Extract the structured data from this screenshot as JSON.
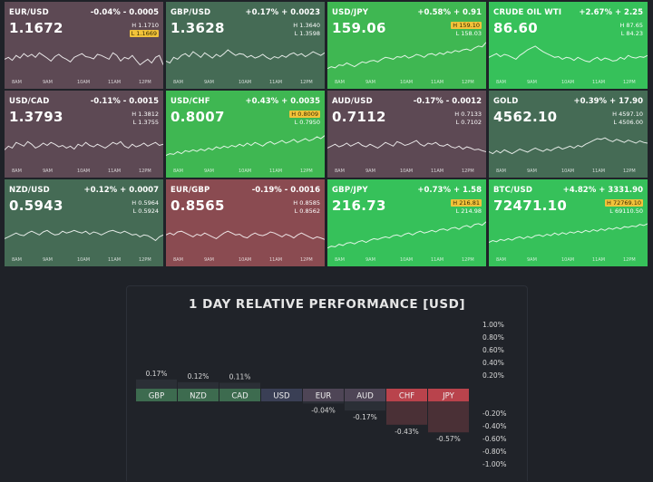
{
  "tiles": [
    {
      "symbol": "EUR/USD",
      "change": "-0.04% - 0.0005",
      "price": "1.1672",
      "high": "H 1.1710",
      "low": "L 1.1669",
      "hi_flag": "low",
      "bg": "#5d4954",
      "times": [
        "8AM",
        "9AM",
        "10AM",
        "11AM",
        "12PM"
      ],
      "spark": [
        0.45,
        0.5,
        0.42,
        0.55,
        0.48,
        0.6,
        0.52,
        0.58,
        0.5,
        0.62,
        0.55,
        0.48,
        0.4,
        0.52,
        0.58,
        0.5,
        0.45,
        0.38,
        0.5,
        0.55,
        0.6,
        0.52,
        0.5,
        0.46,
        0.58,
        0.55,
        0.5,
        0.45,
        0.62,
        0.55,
        0.4,
        0.5,
        0.46,
        0.55,
        0.42,
        0.3,
        0.38,
        0.45,
        0.35,
        0.5,
        0.55,
        0.3
      ]
    },
    {
      "symbol": "GBP/USD",
      "change": "+0.17% + 0.0023",
      "price": "1.3628",
      "high": "H 1.3640",
      "low": "L 1.3598",
      "hi_flag": "",
      "bg": "#456b55",
      "times": [
        "8AM",
        "9AM",
        "10AM",
        "11AM",
        "12PM"
      ],
      "spark": [
        0.4,
        0.35,
        0.5,
        0.45,
        0.55,
        0.6,
        0.52,
        0.65,
        0.58,
        0.5,
        0.62,
        0.55,
        0.48,
        0.58,
        0.52,
        0.6,
        0.7,
        0.62,
        0.55,
        0.6,
        0.58,
        0.5,
        0.55,
        0.48,
        0.52,
        0.58,
        0.5,
        0.45,
        0.52,
        0.48,
        0.55,
        0.5,
        0.58,
        0.62,
        0.55,
        0.6,
        0.52,
        0.58,
        0.65,
        0.6,
        0.55,
        0.62
      ]
    },
    {
      "symbol": "USD/JPY",
      "change": "+0.58% + 0.91",
      "price": "159.06",
      "high": "H 159.10",
      "low": "L 158.03",
      "hi_flag": "high",
      "bg": "#3fb752",
      "times": [
        "8AM",
        "9AM",
        "10AM",
        "11AM",
        "12PM"
      ],
      "spark": [
        0.2,
        0.25,
        0.22,
        0.3,
        0.28,
        0.35,
        0.3,
        0.25,
        0.32,
        0.38,
        0.35,
        0.4,
        0.42,
        0.38,
        0.45,
        0.5,
        0.48,
        0.45,
        0.52,
        0.5,
        0.55,
        0.48,
        0.52,
        0.58,
        0.55,
        0.5,
        0.58,
        0.6,
        0.55,
        0.62,
        0.58,
        0.65,
        0.62,
        0.68,
        0.65,
        0.7,
        0.72,
        0.68,
        0.75,
        0.8,
        0.78,
        0.9
      ]
    },
    {
      "symbol": "CRUDE OIL WTI",
      "change": "+2.67% + 2.25",
      "price": "86.60",
      "high": "H 87.65",
      "low": "L 84.23",
      "hi_flag": "",
      "bg": "#36c15a",
      "times": [
        "8AM",
        "9AM",
        "10AM",
        "11AM",
        "12PM"
      ],
      "spark": [
        0.5,
        0.55,
        0.6,
        0.52,
        0.58,
        0.55,
        0.5,
        0.45,
        0.55,
        0.62,
        0.7,
        0.75,
        0.8,
        0.72,
        0.65,
        0.6,
        0.55,
        0.5,
        0.52,
        0.45,
        0.5,
        0.48,
        0.42,
        0.5,
        0.45,
        0.4,
        0.38,
        0.45,
        0.5,
        0.42,
        0.48,
        0.45,
        0.4,
        0.42,
        0.5,
        0.45,
        0.55,
        0.5,
        0.48,
        0.52,
        0.5,
        0.55
      ]
    },
    {
      "symbol": "USD/CAD",
      "change": "-0.11% - 0.0015",
      "price": "1.3793",
      "high": "H 1.3812",
      "low": "L 1.3755",
      "hi_flag": "",
      "bg": "#5d4954",
      "times": [
        "8AM",
        "9AM",
        "10AM",
        "11AM",
        "12PM"
      ],
      "spark": [
        0.4,
        0.5,
        0.45,
        0.6,
        0.55,
        0.5,
        0.62,
        0.55,
        0.45,
        0.5,
        0.58,
        0.52,
        0.6,
        0.55,
        0.48,
        0.52,
        0.45,
        0.5,
        0.42,
        0.55,
        0.5,
        0.6,
        0.52,
        0.48,
        0.55,
        0.5,
        0.45,
        0.52,
        0.6,
        0.55,
        0.62,
        0.5,
        0.45,
        0.55,
        0.48,
        0.52,
        0.58,
        0.5,
        0.55,
        0.6,
        0.52,
        0.55
      ]
    },
    {
      "symbol": "USD/CHF",
      "change": "+0.43% + 0.0035",
      "price": "0.8007",
      "high": "H 0.8009",
      "low": "L 0.7950",
      "hi_flag": "high",
      "bg": "#3fb752",
      "times": [
        "8AM",
        "9AM",
        "10AM",
        "11AM",
        "12PM"
      ],
      "spark": [
        0.25,
        0.3,
        0.28,
        0.35,
        0.3,
        0.38,
        0.35,
        0.4,
        0.36,
        0.42,
        0.38,
        0.45,
        0.4,
        0.48,
        0.44,
        0.5,
        0.46,
        0.52,
        0.48,
        0.55,
        0.5,
        0.58,
        0.52,
        0.6,
        0.55,
        0.5,
        0.58,
        0.62,
        0.55,
        0.6,
        0.65,
        0.58,
        0.62,
        0.68,
        0.6,
        0.65,
        0.7,
        0.64,
        0.68,
        0.75,
        0.7,
        0.78
      ]
    },
    {
      "symbol": "AUD/USD",
      "change": "-0.17% - 0.0012",
      "price": "0.7112",
      "high": "H 0.7133",
      "low": "L 0.7102",
      "hi_flag": "",
      "bg": "#5d4954",
      "times": [
        "8AM",
        "9AM",
        "10AM",
        "11AM",
        "12PM"
      ],
      "spark": [
        0.45,
        0.5,
        0.55,
        0.48,
        0.52,
        0.58,
        0.5,
        0.55,
        0.6,
        0.52,
        0.48,
        0.55,
        0.5,
        0.45,
        0.52,
        0.6,
        0.55,
        0.5,
        0.62,
        0.58,
        0.52,
        0.55,
        0.6,
        0.65,
        0.55,
        0.5,
        0.58,
        0.55,
        0.6,
        0.52,
        0.5,
        0.55,
        0.48,
        0.45,
        0.5,
        0.42,
        0.48,
        0.45,
        0.4,
        0.42,
        0.38,
        0.35
      ]
    },
    {
      "symbol": "GOLD",
      "change": "+0.39% + 17.90",
      "price": "4562.10",
      "high": "H 4597.10",
      "low": "L 4506.00",
      "hi_flag": "",
      "bg": "#456b55",
      "times": [
        "8AM",
        "9AM",
        "10AM",
        "11AM",
        "12PM"
      ],
      "spark": [
        0.35,
        0.3,
        0.38,
        0.32,
        0.4,
        0.35,
        0.3,
        0.36,
        0.42,
        0.38,
        0.34,
        0.4,
        0.45,
        0.4,
        0.36,
        0.42,
        0.38,
        0.44,
        0.48,
        0.42,
        0.46,
        0.5,
        0.45,
        0.52,
        0.48,
        0.55,
        0.6,
        0.65,
        0.7,
        0.68,
        0.72,
        0.66,
        0.62,
        0.68,
        0.64,
        0.6,
        0.66,
        0.62,
        0.58,
        0.64,
        0.6,
        0.58
      ]
    },
    {
      "symbol": "NZD/USD",
      "change": "+0.12% + 0.0007",
      "price": "0.5943",
      "high": "H 0.5964",
      "low": "L 0.5924",
      "hi_flag": "",
      "bg": "#456b55",
      "times": [
        "8AM",
        "9AM",
        "10AM",
        "11AM",
        "12PM"
      ],
      "spark": [
        0.4,
        0.45,
        0.5,
        0.55,
        0.5,
        0.48,
        0.55,
        0.6,
        0.55,
        0.5,
        0.58,
        0.62,
        0.55,
        0.5,
        0.52,
        0.6,
        0.55,
        0.58,
        0.62,
        0.58,
        0.55,
        0.6,
        0.52,
        0.58,
        0.55,
        0.5,
        0.55,
        0.6,
        0.62,
        0.58,
        0.55,
        0.6,
        0.55,
        0.5,
        0.52,
        0.45,
        0.5,
        0.48,
        0.42,
        0.35,
        0.45,
        0.5
      ]
    },
    {
      "symbol": "EUR/GBP",
      "change": "-0.19% - 0.0016",
      "price": "0.8565",
      "high": "H 0.8585",
      "low": "L 0.8562",
      "hi_flag": "",
      "bg": "#8a4b51",
      "times": [
        "8AM",
        "9AM",
        "10AM",
        "11AM",
        "12PM"
      ],
      "spark": [
        0.5,
        0.55,
        0.5,
        0.58,
        0.6,
        0.55,
        0.5,
        0.45,
        0.52,
        0.48,
        0.55,
        0.5,
        0.45,
        0.4,
        0.48,
        0.55,
        0.6,
        0.55,
        0.5,
        0.52,
        0.45,
        0.42,
        0.5,
        0.55,
        0.5,
        0.48,
        0.52,
        0.58,
        0.55,
        0.5,
        0.45,
        0.52,
        0.48,
        0.42,
        0.5,
        0.55,
        0.5,
        0.45,
        0.4,
        0.45,
        0.42,
        0.38
      ]
    },
    {
      "symbol": "GBP/JPY",
      "change": "+0.73% + 1.58",
      "price": "216.73",
      "high": "H 216.81",
      "low": "L 214.98",
      "hi_flag": "high",
      "bg": "#36c15a",
      "times": [
        "8AM",
        "9AM",
        "10AM",
        "11AM",
        "12PM"
      ],
      "spark": [
        0.15,
        0.2,
        0.18,
        0.25,
        0.22,
        0.28,
        0.3,
        0.26,
        0.32,
        0.35,
        0.3,
        0.36,
        0.4,
        0.38,
        0.42,
        0.45,
        0.42,
        0.48,
        0.5,
        0.46,
        0.52,
        0.55,
        0.5,
        0.56,
        0.6,
        0.55,
        0.58,
        0.62,
        0.58,
        0.64,
        0.66,
        0.62,
        0.68,
        0.7,
        0.65,
        0.72,
        0.75,
        0.7,
        0.78,
        0.8,
        0.76,
        0.85
      ]
    },
    {
      "symbol": "BTC/USD",
      "change": "+4.82% + 3331.90",
      "price": "72471.10",
      "high": "H 72769.10",
      "low": "L 69110.50",
      "hi_flag": "high",
      "bg": "#36c15a",
      "times": [
        "8AM",
        "9AM",
        "10AM",
        "11AM",
        "12PM"
      ],
      "spark": [
        0.3,
        0.35,
        0.32,
        0.38,
        0.35,
        0.4,
        0.36,
        0.42,
        0.45,
        0.4,
        0.46,
        0.42,
        0.48,
        0.5,
        0.46,
        0.52,
        0.48,
        0.55,
        0.5,
        0.56,
        0.52,
        0.58,
        0.55,
        0.6,
        0.56,
        0.62,
        0.58,
        0.64,
        0.6,
        0.66,
        0.62,
        0.68,
        0.65,
        0.7,
        0.66,
        0.72,
        0.7,
        0.74,
        0.72,
        0.78,
        0.75,
        0.8
      ]
    }
  ],
  "performance": {
    "title": "1 DAY RELATIVE PERFORMANCE  [USD]",
    "right_ticks": [
      "1.00%",
      "0.80%",
      "0.60%",
      "0.40%",
      "0.20%",
      "-0.20%",
      "-0.40%",
      "-0.60%",
      "-0.80%",
      "-1.00%"
    ]
  },
  "chart_data": {
    "type": "bar",
    "title": "1 DAY RELATIVE PERFORMANCE  [USD]",
    "categories": [
      "GBP",
      "NZD",
      "CAD",
      "USD",
      "EUR",
      "AUD",
      "CHF",
      "JPY"
    ],
    "values": [
      0.17,
      0.12,
      0.11,
      0,
      -0.04,
      -0.17,
      -0.43,
      -0.57
    ],
    "value_labels": [
      "0.17%",
      "0.12%",
      "0.11%",
      "",
      "-0.04%",
      "-0.17%",
      "-0.43%",
      "-0.57%"
    ],
    "unit": "%",
    "ylim": [
      -1.0,
      1.0
    ],
    "label_colors": [
      "#3d6b4f",
      "#3d6b4f",
      "#3d6b4f",
      "#3a3f55",
      "#4e4556",
      "#4e4556",
      "#b9434c",
      "#b9434c"
    ]
  }
}
